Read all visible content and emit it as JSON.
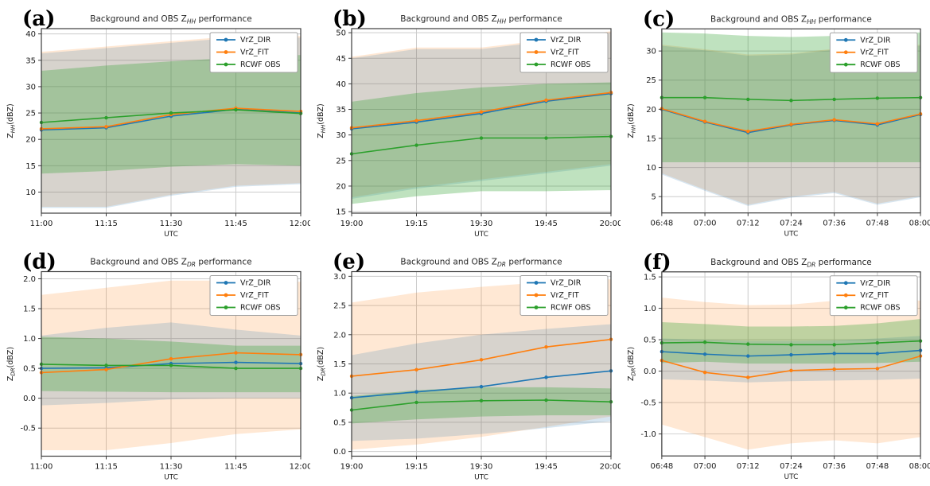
{
  "figure": {
    "background": "#ffffff",
    "series_colors": {
      "VrZ_DIR": "#1f77b4",
      "VrZ_FIT": "#ff7f0e",
      "RCWF OBS": "#2ca02c"
    },
    "legend_labels": [
      "VrZ_DIR",
      "VrZ_FIT",
      "RCWF OBS"
    ],
    "xlabel": "UTC"
  },
  "chart_data": {
    "type": "line",
    "legend_position": "upper right",
    "grid": true,
    "panels": [
      {
        "id": "a",
        "corner_label": "(a)",
        "title": {
          "pre": "Background and OBS Z",
          "sub": "HH",
          "post": " performance"
        },
        "ylabel": {
          "pre": "Z",
          "sub": "HH",
          "post": "(dBZ)"
        },
        "xlabel": "UTC",
        "x_ticklabels": [
          "11:00",
          "11:15",
          "11:30",
          "11:45",
          "12:00"
        ],
        "y_ticks": [
          10,
          15,
          20,
          25,
          30,
          35,
          40
        ],
        "y_ticklabels": [
          "10",
          "15",
          "20",
          "25",
          "30",
          "35",
          "40"
        ],
        "ylim": [
          6.0,
          41.0
        ],
        "series": [
          {
            "name": "VrZ_DIR",
            "color": "#1f77b4",
            "band_alpha": 0.18,
            "values": [
              21.8,
              22.2,
              24.4,
              25.7,
              25.0
            ],
            "band_lower": [
              7.0,
              7.0,
              9.3,
              11.0,
              11.5
            ],
            "band_upper": [
              36.3,
              37.3,
              38.3,
              39.3,
              39.3
            ]
          },
          {
            "name": "VrZ_FIT",
            "color": "#ff7f0e",
            "band_alpha": 0.18,
            "values": [
              22.0,
              22.4,
              24.7,
              25.9,
              25.3
            ],
            "band_lower": [
              7.2,
              7.2,
              9.5,
              11.2,
              11.7
            ],
            "band_upper": [
              36.6,
              37.6,
              38.6,
              39.6,
              39.6
            ]
          },
          {
            "name": "RCWF OBS",
            "color": "#2ca02c",
            "band_alpha": 0.3,
            "values": [
              23.2,
              24.1,
              25.0,
              25.6,
              24.9
            ],
            "band_lower": [
              13.5,
              14.0,
              14.8,
              15.3,
              15.0
            ],
            "band_upper": [
              33.0,
              34.0,
              34.8,
              35.5,
              36.0
            ]
          }
        ]
      },
      {
        "id": "b",
        "corner_label": "(b)",
        "title": {
          "pre": "Background and OBS Z",
          "sub": "HH",
          "post": " performance"
        },
        "ylabel": {
          "pre": "Z",
          "sub": "HH",
          "post": "(dBZ)"
        },
        "xlabel": "UTC",
        "x_ticklabels": [
          "19:00",
          "19:15",
          "19:30",
          "19:45",
          "20:00"
        ],
        "y_ticks": [
          15,
          20,
          25,
          30,
          35,
          40,
          45,
          50
        ],
        "y_ticklabels": [
          "15",
          "20",
          "25",
          "30",
          "35",
          "40",
          "45",
          "50"
        ],
        "ylim": [
          14.7,
          50.8
        ],
        "series": [
          {
            "name": "VrZ_DIR",
            "color": "#1f77b4",
            "band_alpha": 0.18,
            "values": [
              31.2,
              32.5,
              34.2,
              36.6,
              38.1
            ],
            "band_lower": [
              17.5,
              19.5,
              21.0,
              22.5,
              24.0
            ],
            "band_upper": [
              45.0,
              46.8,
              46.8,
              48.3,
              50.0
            ]
          },
          {
            "name": "VrZ_FIT",
            "color": "#ff7f0e",
            "band_alpha": 0.18,
            "values": [
              31.4,
              32.8,
              34.5,
              36.8,
              38.3
            ],
            "band_lower": [
              17.8,
              19.8,
              21.3,
              22.8,
              24.3
            ],
            "band_upper": [
              45.3,
              47.1,
              47.1,
              48.6,
              50.3
            ]
          },
          {
            "name": "RCWF OBS",
            "color": "#2ca02c",
            "band_alpha": 0.3,
            "values": [
              26.3,
              28.0,
              29.4,
              29.4,
              29.7
            ],
            "band_lower": [
              16.5,
              18.0,
              19.0,
              19.0,
              19.2
            ],
            "band_upper": [
              36.5,
              38.2,
              39.3,
              40.0,
              40.3
            ]
          }
        ]
      },
      {
        "id": "c",
        "corner_label": "(c)",
        "title": {
          "pre": "Background and OBS Z",
          "sub": "HH",
          "post": " performance"
        },
        "ylabel": {
          "pre": "Z",
          "sub": "HH",
          "post": "(dBZ)"
        },
        "xlabel": "UTC",
        "x_ticklabels": [
          "06:48",
          "07:00",
          "07:12",
          "07:24",
          "07:36",
          "07:48",
          "08:00"
        ],
        "y_ticks": [
          5,
          10,
          15,
          20,
          25,
          30
        ],
        "y_ticklabels": [
          "5",
          "10",
          "15",
          "20",
          "25",
          "30"
        ],
        "ylim": [
          2.2,
          33.8
        ],
        "series": [
          {
            "name": "VrZ_DIR",
            "color": "#1f77b4",
            "band_alpha": 0.18,
            "values": [
              20.0,
              17.8,
              16.0,
              17.3,
              18.1,
              17.3,
              19.1
            ],
            "band_lower": [
              8.8,
              6.0,
              3.4,
              4.8,
              5.6,
              3.6,
              4.9
            ],
            "band_upper": [
              30.9,
              30.1,
              29.2,
              29.4,
              30.2,
              30.7,
              30.9
            ]
          },
          {
            "name": "VrZ_FIT",
            "color": "#ff7f0e",
            "band_alpha": 0.18,
            "values": [
              20.1,
              17.9,
              16.2,
              17.4,
              18.2,
              17.5,
              19.2
            ],
            "band_lower": [
              9.0,
              6.2,
              3.6,
              5.0,
              5.8,
              3.8,
              5.1
            ],
            "band_upper": [
              31.1,
              30.3,
              29.4,
              29.6,
              30.4,
              30.9,
              31.1
            ]
          },
          {
            "name": "RCWF OBS",
            "color": "#2ca02c",
            "band_alpha": 0.3,
            "values": [
              22.0,
              22.0,
              21.7,
              21.5,
              21.7,
              21.9,
              22.0
            ],
            "band_lower": [
              10.9,
              10.9,
              10.9,
              10.9,
              10.9,
              10.9,
              10.9
            ],
            "band_upper": [
              33.2,
              33.0,
              32.6,
              32.4,
              32.6,
              33.0,
              33.2
            ]
          }
        ]
      },
      {
        "id": "d",
        "corner_label": "(d)",
        "title": {
          "pre": "Background and OBS Z",
          "sub": "DR",
          "post": " performance"
        },
        "ylabel": {
          "pre": "Z",
          "sub": "DR",
          "post": "(dBZ)"
        },
        "xlabel": "UTC",
        "x_ticklabels": [
          "11:00",
          "11:15",
          "11:30",
          "11:45",
          "12:00"
        ],
        "y_ticks": [
          -0.5,
          0.0,
          0.5,
          1.0,
          1.5,
          2.0
        ],
        "y_ticklabels": [
          "-0.5",
          "0.0",
          "0.5",
          "1.0",
          "1.5",
          "2.0"
        ],
        "ylim": [
          -0.97,
          2.12
        ],
        "series": [
          {
            "name": "VrZ_DIR",
            "color": "#1f77b4",
            "band_alpha": 0.18,
            "values": [
              0.5,
              0.51,
              0.58,
              0.6,
              0.58
            ],
            "band_lower": [
              -0.12,
              -0.08,
              -0.02,
              0.0,
              0.0
            ],
            "band_upper": [
              1.05,
              1.18,
              1.27,
              1.15,
              1.05
            ]
          },
          {
            "name": "VrZ_FIT",
            "color": "#ff7f0e",
            "band_alpha": 0.18,
            "values": [
              0.43,
              0.48,
              0.66,
              0.76,
              0.73
            ],
            "band_lower": [
              -0.87,
              -0.87,
              -0.75,
              -0.6,
              -0.52
            ],
            "band_upper": [
              1.73,
              1.85,
              1.97,
              1.97,
              1.95
            ]
          },
          {
            "name": "RCWF OBS",
            "color": "#2ca02c",
            "band_alpha": 0.3,
            "values": [
              0.57,
              0.55,
              0.55,
              0.5,
              0.5
            ],
            "band_lower": [
              0.12,
              0.11,
              0.1,
              0.1,
              0.1
            ],
            "band_upper": [
              1.03,
              1.0,
              0.95,
              0.88,
              0.88
            ]
          }
        ]
      },
      {
        "id": "e",
        "corner_label": "(e)",
        "title": {
          "pre": "Background and OBS Z",
          "sub": "DR",
          "post": " performance"
        },
        "ylabel": {
          "pre": "Z",
          "sub": "DR",
          "post": "(dBZ)"
        },
        "xlabel": "UTC",
        "x_ticklabels": [
          "19:00",
          "19:15",
          "19:30",
          "19:45",
          "20:00"
        ],
        "y_ticks": [
          0.0,
          0.5,
          1.0,
          1.5,
          2.0,
          2.5,
          3.0
        ],
        "y_ticklabels": [
          "0.0",
          "0.5",
          "1.0",
          "1.5",
          "2.0",
          "2.5",
          "3.0"
        ],
        "ylim": [
          -0.08,
          3.08
        ],
        "series": [
          {
            "name": "VrZ_DIR",
            "color": "#1f77b4",
            "band_alpha": 0.18,
            "values": [
              0.92,
              1.02,
              1.11,
              1.27,
              1.38
            ],
            "band_lower": [
              0.18,
              0.22,
              0.3,
              0.4,
              0.52
            ],
            "band_upper": [
              1.65,
              1.85,
              2.0,
              2.1,
              2.18
            ]
          },
          {
            "name": "VrZ_FIT",
            "color": "#ff7f0e",
            "band_alpha": 0.18,
            "values": [
              1.29,
              1.4,
              1.57,
              1.79,
              1.92
            ],
            "band_lower": [
              0.03,
              0.12,
              0.25,
              0.42,
              0.6
            ],
            "band_upper": [
              2.55,
              2.72,
              2.82,
              2.9,
              2.95
            ]
          },
          {
            "name": "RCWF OBS",
            "color": "#2ca02c",
            "band_alpha": 0.3,
            "values": [
              0.71,
              0.84,
              0.87,
              0.88,
              0.85
            ],
            "band_lower": [
              0.48,
              0.55,
              0.6,
              0.62,
              0.62
            ],
            "band_upper": [
              0.95,
              1.05,
              1.1,
              1.1,
              1.08
            ]
          }
        ]
      },
      {
        "id": "f",
        "corner_label": "(f)",
        "title": {
          "pre": "Background and OBS Z",
          "sub": "DR",
          "post": " performance"
        },
        "ylabel": {
          "pre": "Z",
          "sub": "DR",
          "post": "(dBZ)"
        },
        "xlabel": "UTC",
        "x_ticklabels": [
          "06:48",
          "07:00",
          "07:12",
          "07:24",
          "07:36",
          "07:48",
          "08:00"
        ],
        "y_ticks": [
          -1.0,
          -0.5,
          0.0,
          0.5,
          1.0,
          1.5
        ],
        "y_ticklabels": [
          "-1.0",
          "-0.5",
          "0.0",
          "0.5",
          "1.0",
          "1.5"
        ],
        "ylim": [
          -1.35,
          1.58
        ],
        "series": [
          {
            "name": "VrZ_DIR",
            "color": "#1f77b4",
            "band_alpha": 0.18,
            "values": [
              0.31,
              0.27,
              0.24,
              0.26,
              0.28,
              0.28,
              0.33
            ],
            "band_lower": [
              -0.13,
              -0.15,
              -0.18,
              -0.16,
              -0.15,
              -0.14,
              -0.12
            ],
            "band_upper": [
              0.52,
              0.5,
              0.48,
              0.48,
              0.49,
              0.52,
              0.56
            ]
          },
          {
            "name": "VrZ_FIT",
            "color": "#ff7f0e",
            "band_alpha": 0.18,
            "values": [
              0.17,
              -0.02,
              -0.1,
              0.01,
              0.03,
              0.04,
              0.24
            ],
            "band_lower": [
              -0.85,
              -1.05,
              -1.25,
              -1.15,
              -1.1,
              -1.15,
              -1.05
            ],
            "band_upper": [
              1.17,
              1.1,
              1.05,
              1.06,
              1.12,
              1.2,
              1.12
            ]
          },
          {
            "name": "RCWF OBS",
            "color": "#2ca02c",
            "band_alpha": 0.3,
            "values": [
              0.45,
              0.46,
              0.43,
              0.42,
              0.42,
              0.45,
              0.48
            ],
            "band_lower": [
              0.13,
              0.15,
              0.12,
              0.12,
              0.12,
              0.13,
              0.15
            ],
            "band_upper": [
              0.78,
              0.75,
              0.71,
              0.71,
              0.72,
              0.76,
              0.83
            ]
          }
        ]
      }
    ]
  }
}
